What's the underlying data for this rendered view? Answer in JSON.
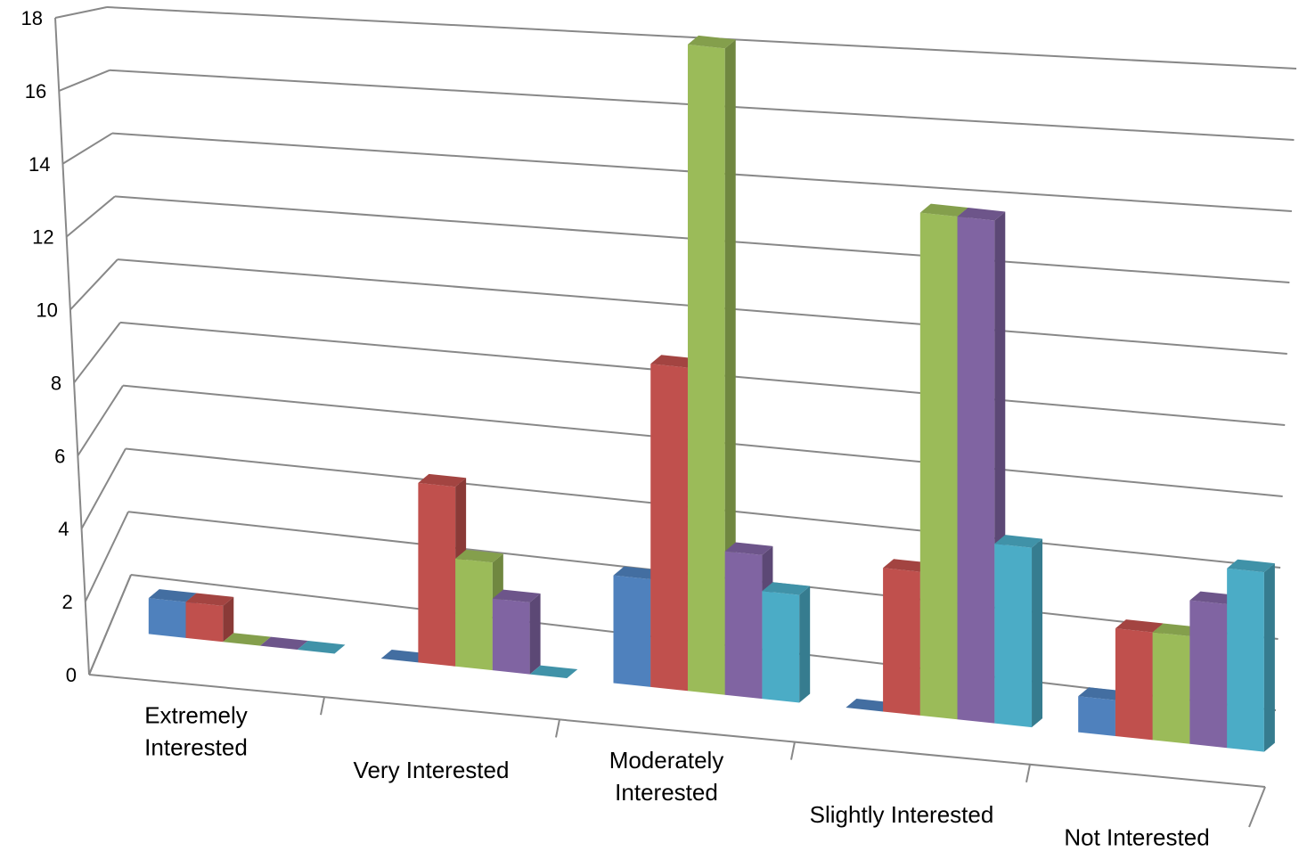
{
  "chart_data": {
    "type": "bar",
    "title": "",
    "xlabel": "",
    "ylabel": "",
    "categories": [
      [
        "Extremely",
        "Interested"
      ],
      [
        "Very Interested"
      ],
      [
        "Moderately",
        "Interested"
      ],
      [
        "Slightly Interested"
      ],
      [
        "Not Interested"
      ]
    ],
    "series": [
      {
        "color": "#4F81BD",
        "values": [
          1,
          0,
          3,
          0,
          1
        ]
      },
      {
        "color": "#C0504D",
        "values": [
          1,
          5,
          9,
          4,
          3
        ]
      },
      {
        "color": "#9BBB59",
        "values": [
          0,
          3,
          18,
          14,
          3
        ]
      },
      {
        "color": "#8064A2",
        "values": [
          0,
          2,
          4,
          14,
          4
        ]
      },
      {
        "color": "#4BACC6",
        "values": [
          0,
          0,
          3,
          5,
          5
        ]
      }
    ],
    "ylim": [
      0,
      18
    ],
    "yticks": [
      "0",
      "2",
      "4",
      "6",
      "8",
      "10",
      "12",
      "14",
      "16",
      "18"
    ],
    "grid": true,
    "legend": "none"
  }
}
